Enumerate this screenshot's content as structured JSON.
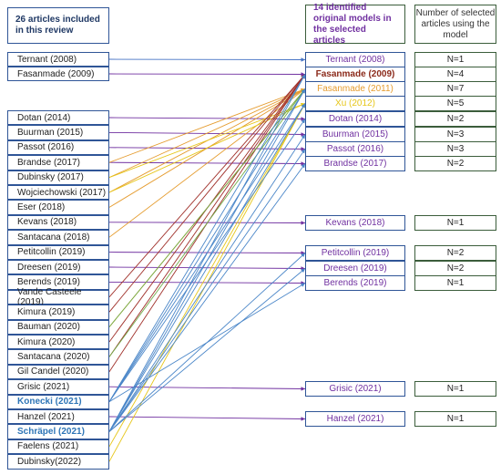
{
  "left": {
    "header": "26 articles included in this review",
    "items": [
      "Ternant (2008)",
      "Fasanmade (2009)",
      "Dotan (2014)",
      "Buurman (2015)",
      "Passot (2016)",
      "Brandse (2017)",
      "Dubinsky (2017)",
      "Wojciechowski (2017)",
      "Eser (2018)",
      "Kevans (2018)",
      "Santacana (2018)",
      "Petitcollin (2019)",
      "Dreesen (2019)",
      "Berends (2019)",
      "Vande Casteele (2019)",
      "Kimura (2019)",
      "Bauman (2020)",
      "Kimura (2020)",
      "Santacana (2020)",
      "Gil Candel (2020)",
      "Grisic (2021)",
      "Konecki (2021)",
      "Hanzel (2021)",
      "Schräpel (2021)",
      "Faelens (2021)",
      "Dubinsky(2022)"
    ]
  },
  "models": {
    "header": "14 identified original models in the selected articles",
    "items": [
      "Ternant (2008)",
      "Fasanmade (2009)",
      "Fasanmade (2011)",
      "Xu (2012)",
      "Dotan (2014)",
      "Buurman (2015)",
      "Passot (2016)",
      "Brandse (2017)",
      "Kevans (2018)",
      "Petitcollin (2019)",
      "Dreesen (2019)",
      "Berends (2019)",
      "Grisic (2021)",
      "Hanzel (2021)"
    ]
  },
  "counts": {
    "header": "Number of selected articles using the model",
    "items": [
      "N=1",
      "N=4",
      "N=7",
      "N=5",
      "N=2",
      "N=3",
      "N=3",
      "N=2",
      "N=1",
      "N=2",
      "N=2",
      "N=1",
      "N=1",
      "N=1"
    ]
  }
}
